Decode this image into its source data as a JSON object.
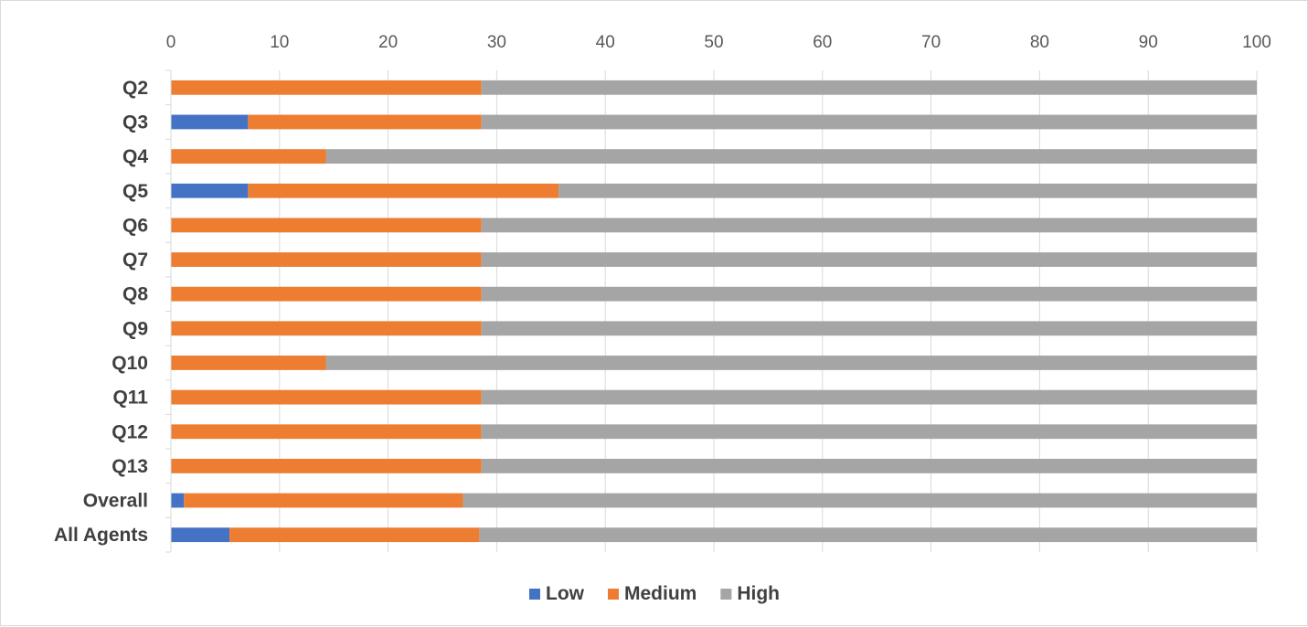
{
  "chart_data": {
    "type": "bar",
    "orientation": "horizontal",
    "stacked": true,
    "title": "",
    "xlabel": "",
    "ylabel": "",
    "xlim": [
      0,
      100
    ],
    "x_ticks": [
      0,
      10,
      20,
      30,
      40,
      50,
      60,
      70,
      80,
      90,
      100
    ],
    "x_axis_position": "top",
    "grid": true,
    "legend_position": "bottom",
    "categories": [
      "Q2",
      "Q3",
      "Q4",
      "Q5",
      "Q6",
      "Q7",
      "Q8",
      "Q9",
      "Q10",
      "Q11",
      "Q12",
      "Q13",
      "Overall",
      "All Agents"
    ],
    "series": [
      {
        "name": "Low",
        "color": "#4472c4",
        "values": [
          0,
          7.1,
          0,
          7.1,
          0,
          0,
          0,
          0,
          0,
          0,
          0,
          0,
          1.2,
          5.4
        ]
      },
      {
        "name": "Medium",
        "color": "#ed7d31",
        "values": [
          28.6,
          21.5,
          14.3,
          28.6,
          28.6,
          28.6,
          28.6,
          28.6,
          14.3,
          28.6,
          28.6,
          28.6,
          25.7,
          23.0
        ]
      },
      {
        "name": "High",
        "color": "#a5a5a5",
        "values": [
          71.4,
          71.4,
          85.7,
          64.3,
          71.4,
          71.4,
          71.4,
          71.4,
          85.7,
          71.4,
          71.4,
          71.4,
          73.1,
          71.6
        ]
      }
    ]
  }
}
